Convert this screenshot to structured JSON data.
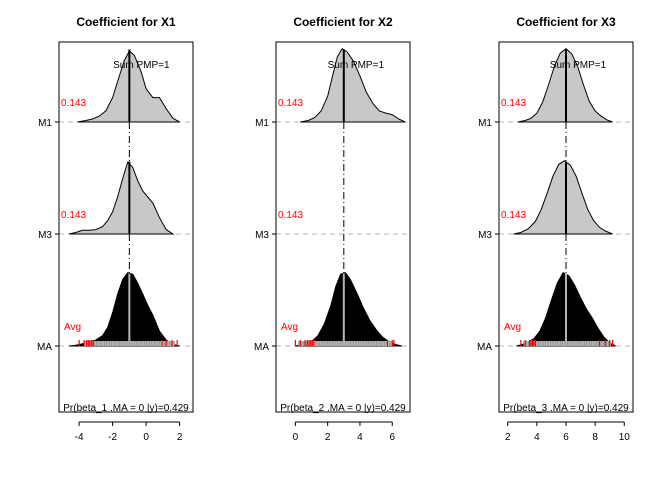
{
  "chart_data": [
    {
      "type": "area",
      "title": "Coefficient for X1",
      "xlim": [
        -5.2,
        2.8
      ],
      "xticks": [
        -4,
        -2,
        0,
        2
      ],
      "xtick_labels": [
        "-4",
        "-2",
        "0",
        "2"
      ],
      "rows": [
        "M1",
        "M3",
        "MA"
      ],
      "pmp": [
        "0.143",
        "0.143"
      ],
      "avg_label": "Avg",
      "sum_label": "Sum PMP=1",
      "footer": "Pr(beta_1 .MA = 0 |y)=0.429",
      "estimate": -1.0,
      "densities": [
        {
          "model": "M1",
          "x": [
            -4.1,
            -3.6,
            -3.2,
            -2.8,
            -2.4,
            -2.0,
            -1.6,
            -1.3,
            -1.0,
            -0.7,
            -0.3,
            0.0,
            0.4,
            0.8,
            1.2,
            1.6,
            2.0
          ],
          "y": [
            0.0,
            0.02,
            0.04,
            0.08,
            0.15,
            0.33,
            0.62,
            0.83,
            0.96,
            0.9,
            0.68,
            0.45,
            0.33,
            0.33,
            0.18,
            0.05,
            0.0
          ]
        },
        {
          "model": "M3",
          "x": [
            -4.6,
            -4.2,
            -3.8,
            -3.4,
            -3.0,
            -2.6,
            -2.3,
            -2.0,
            -1.7,
            -1.4,
            -1.1,
            -0.8,
            -0.5,
            -0.2,
            0.1,
            0.4,
            0.8,
            1.2,
            1.6
          ],
          "y": [
            0.0,
            0.02,
            0.05,
            0.05,
            0.06,
            0.1,
            0.18,
            0.3,
            0.5,
            0.75,
            0.97,
            0.9,
            0.72,
            0.58,
            0.5,
            0.42,
            0.22,
            0.06,
            0.0
          ]
        },
        {
          "model": "MA",
          "x": [
            -4.6,
            -4.2,
            -3.8,
            -3.4,
            -3.0,
            -2.6,
            -2.3,
            -2.0,
            -1.7,
            -1.4,
            -1.1,
            -0.8,
            -0.5,
            -0.2,
            0.1,
            0.4,
            0.8,
            1.2,
            1.6,
            2.0
          ],
          "y": [
            0.0,
            0.01,
            0.03,
            0.05,
            0.08,
            0.14,
            0.25,
            0.45,
            0.7,
            0.9,
            0.99,
            0.97,
            0.85,
            0.7,
            0.55,
            0.42,
            0.2,
            0.08,
            0.02,
            0.0
          ]
        }
      ],
      "ci_ticks": [
        -4.0,
        -3.7,
        -3.55,
        -3.45,
        -3.35,
        -3.25,
        -3.15,
        0.95,
        1.2,
        1.55,
        1.85
      ],
      "rug_range": [
        -3.7,
        1.7
      ]
    },
    {
      "type": "area",
      "title": "Coefficient for X2",
      "xlim": [
        -1.2,
        7.1
      ],
      "xticks": [
        0,
        2,
        4,
        6
      ],
      "xtick_labels": [
        "0",
        "2",
        "4",
        "6"
      ],
      "rows": [
        "M1",
        "M3",
        "MA"
      ],
      "pmp": [
        "0.143",
        "0.143"
      ],
      "avg_label": "Avg",
      "sum_label": "Sum PMP=1",
      "footer": "Pr(beta_2 .MA = 0 |y)=0.429",
      "estimate": 3.0,
      "densities": [
        {
          "model": "M1",
          "x": [
            0.3,
            0.8,
            1.2,
            1.6,
            2.0,
            2.3,
            2.6,
            2.9,
            3.2,
            3.6,
            4.0,
            4.4,
            4.8,
            5.2,
            5.6,
            6.0,
            6.4,
            6.8
          ],
          "y": [
            0.0,
            0.02,
            0.06,
            0.15,
            0.35,
            0.62,
            0.88,
            0.99,
            0.95,
            0.82,
            0.62,
            0.4,
            0.25,
            0.15,
            0.12,
            0.1,
            0.04,
            0.0
          ]
        },
        {
          "model": "MA",
          "x": [
            0.0,
            0.5,
            1.0,
            1.4,
            1.8,
            2.2,
            2.5,
            2.8,
            3.1,
            3.4,
            3.8,
            4.2,
            4.6,
            5.0,
            5.4,
            5.8,
            6.2,
            6.6
          ],
          "y": [
            0.0,
            0.02,
            0.06,
            0.14,
            0.3,
            0.55,
            0.8,
            0.97,
            0.99,
            0.9,
            0.72,
            0.52,
            0.35,
            0.22,
            0.12,
            0.06,
            0.02,
            0.0
          ]
        }
      ],
      "ci_ticks": [
        0.0,
        0.3,
        0.6,
        0.75,
        0.85,
        0.95,
        1.05,
        1.15,
        5.7,
        6.0,
        6.1
      ],
      "rug_range": [
        0.2,
        6.0
      ]
    },
    {
      "type": "area",
      "title": "Coefficient for X3",
      "xlim": [
        1.4,
        10.6
      ],
      "xticks": [
        2,
        4,
        6,
        8,
        10
      ],
      "xtick_labels": [
        "2",
        "4",
        "6",
        "8",
        "10"
      ],
      "rows": [
        "M1",
        "M3",
        "MA"
      ],
      "pmp": [
        "0.143",
        "0.143"
      ],
      "avg_label": "Avg",
      "sum_label": "Sum PMP=1",
      "footer": "Pr(beta_3 .MA = 0 |y)=0.429",
      "estimate": 6.0,
      "densities": [
        {
          "model": "M1",
          "x": [
            2.7,
            3.2,
            3.6,
            4.0,
            4.4,
            4.8,
            5.2,
            5.6,
            6.0,
            6.4,
            6.8,
            7.2,
            7.6,
            8.0,
            8.4,
            8.8,
            9.2
          ],
          "y": [
            0.0,
            0.02,
            0.05,
            0.12,
            0.27,
            0.5,
            0.75,
            0.93,
            0.99,
            0.92,
            0.75,
            0.5,
            0.28,
            0.15,
            0.08,
            0.03,
            0.0
          ]
        },
        {
          "model": "M3",
          "x": [
            2.4,
            2.9,
            3.4,
            3.9,
            4.3,
            4.7,
            5.1,
            5.5,
            5.9,
            6.3,
            6.7,
            7.1,
            7.5,
            7.9,
            8.3,
            8.7,
            9.2
          ],
          "y": [
            0.0,
            0.02,
            0.07,
            0.17,
            0.33,
            0.55,
            0.78,
            0.94,
            0.99,
            0.93,
            0.78,
            0.55,
            0.33,
            0.18,
            0.09,
            0.04,
            0.0
          ]
        },
        {
          "model": "MA",
          "x": [
            2.6,
            3.0,
            3.4,
            3.8,
            4.2,
            4.6,
            5.0,
            5.4,
            5.8,
            6.2,
            6.6,
            7.0,
            7.4,
            7.8,
            8.2,
            8.6,
            9.0,
            9.4
          ],
          "y": [
            0.0,
            0.02,
            0.05,
            0.1,
            0.2,
            0.38,
            0.62,
            0.85,
            0.99,
            0.95,
            0.82,
            0.65,
            0.5,
            0.38,
            0.24,
            0.12,
            0.04,
            0.0
          ]
        }
      ],
      "ci_ticks": [
        2.9,
        3.2,
        3.5,
        3.6,
        3.7,
        3.8,
        3.9,
        8.3,
        8.7,
        9.0,
        9.2
      ],
      "rug_range": [
        3.1,
        9.1
      ]
    }
  ],
  "colors": {
    "density_fill": "#c8c8c8",
    "ma_fill": "#000000",
    "estimate_line": "#000000",
    "ma_estimate_line": "#b4b4b4",
    "pmp_text": "#ff0000",
    "ci_ticks": "#ff0000",
    "baseline": "#b4b4b4",
    "rug": "#808080"
  }
}
